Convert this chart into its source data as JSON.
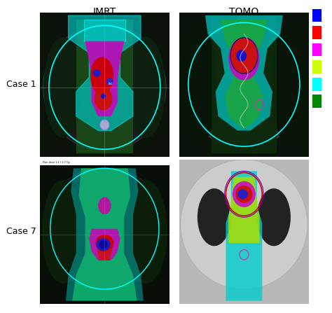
{
  "title_left": "IMRT",
  "title_right": "TOMO",
  "row_label_1": "Case 1",
  "row_label_2": "Case 7",
  "background_color": "#ffffff",
  "legend_colors": [
    "#0000ff",
    "#ff0000",
    "#ff00ff",
    "#ccff00",
    "#00ffff",
    "#008800"
  ],
  "figsize": [
    4.74,
    4.47
  ],
  "dpi": 100,
  "header_fontsize": 10,
  "label_fontsize": 9
}
